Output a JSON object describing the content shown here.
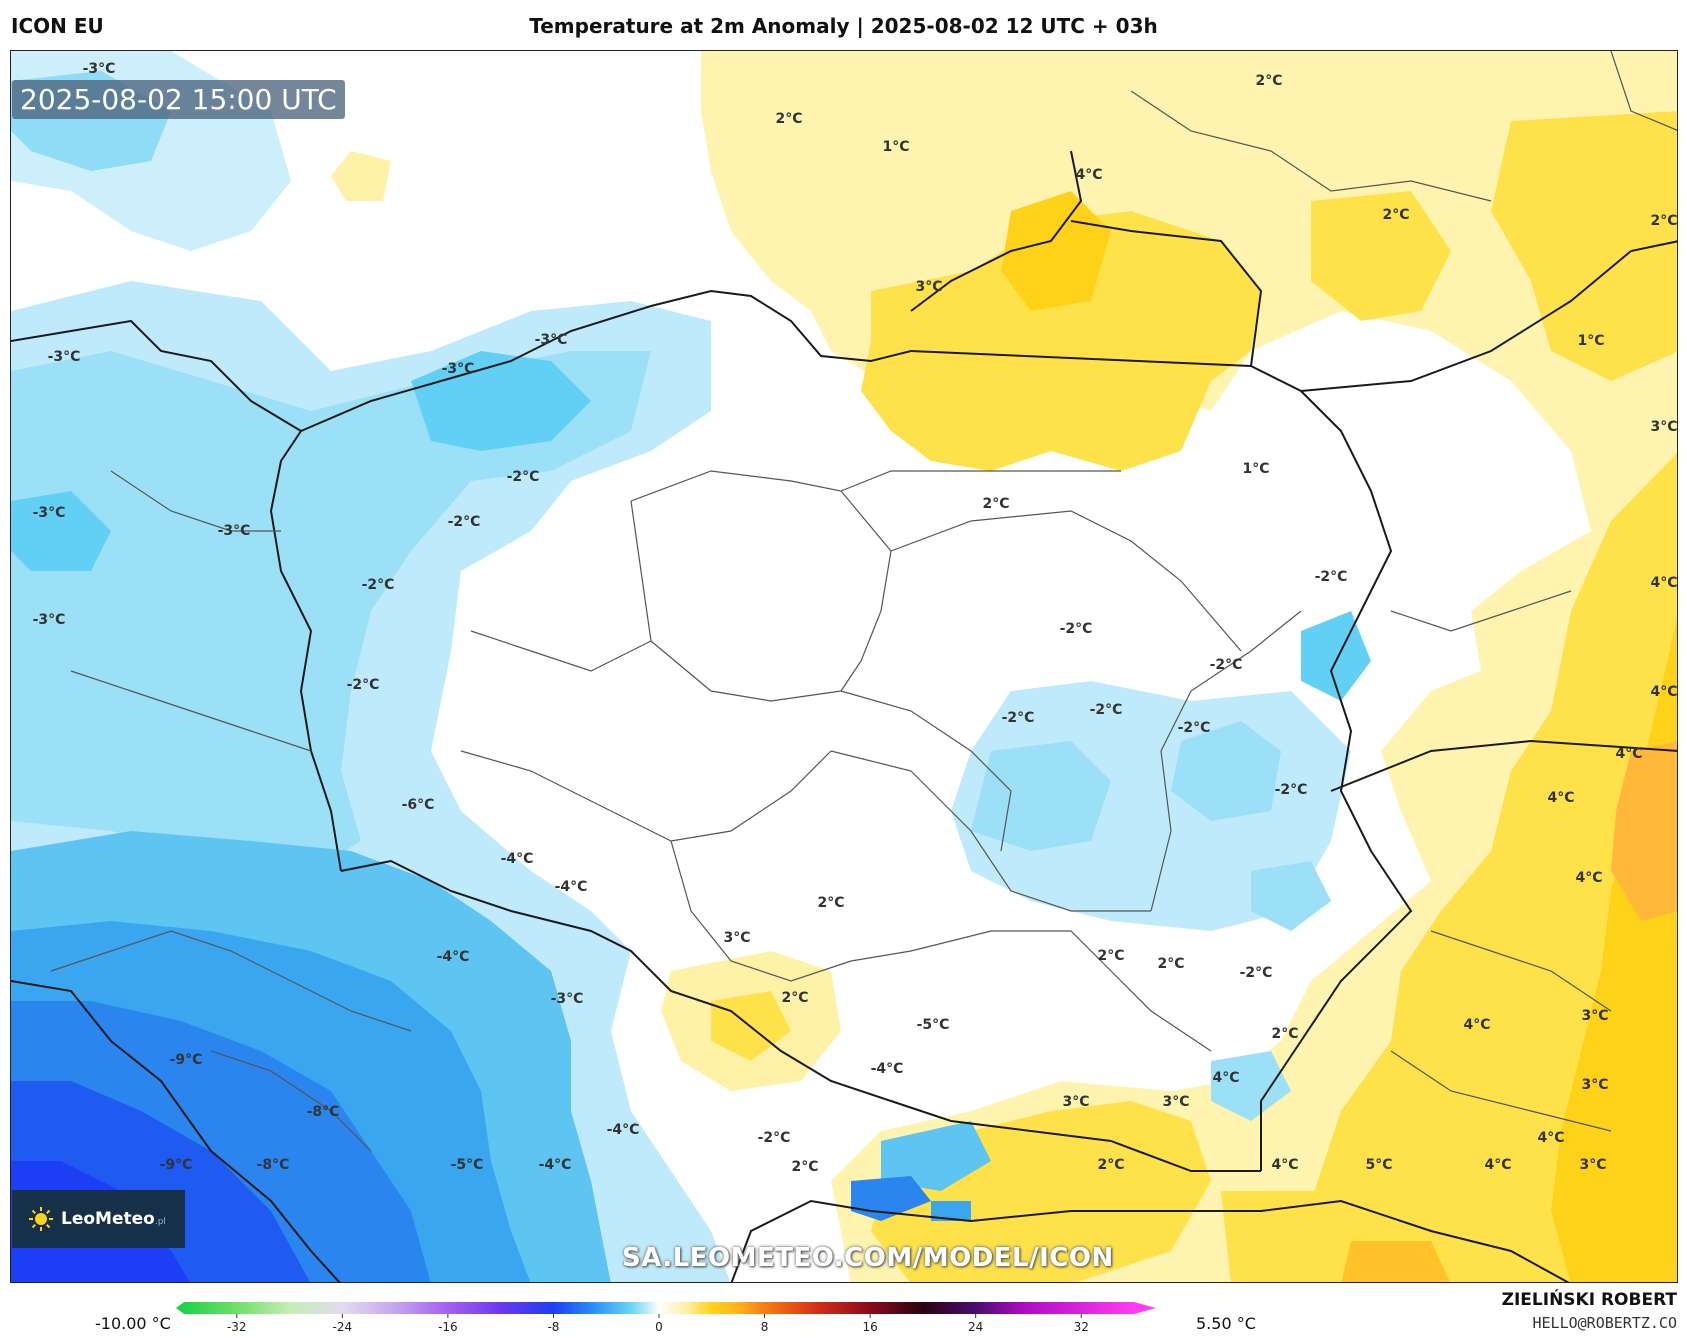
{
  "header": {
    "model": "ICON EU",
    "title": "Temperature at 2m Anomaly | 2025-08-02 12 UTC + 03h"
  },
  "map": {
    "valid_time": "2025-08-02 15:00 UTC",
    "watermark": "SA.LEOMETEO.COM/MODEL/ICON",
    "logo_text": "LeoMeteo",
    "logo_sub": ".pl",
    "labels": [
      {
        "text": "-3°C"
      },
      {
        "text": "2°C"
      },
      {
        "text": "1°C"
      },
      {
        "text": "4°C"
      },
      {
        "text": "2°C"
      },
      {
        "text": "2°C"
      },
      {
        "text": "2°C"
      },
      {
        "text": "3°C"
      },
      {
        "text": "-3°C"
      },
      {
        "text": "-3°C"
      },
      {
        "text": "-3°C"
      },
      {
        "text": "1°C"
      },
      {
        "text": "3°C"
      },
      {
        "text": "-2°C"
      },
      {
        "text": "1°C"
      },
      {
        "text": "-2°C"
      },
      {
        "text": "2°C"
      },
      {
        "text": "-3°C"
      },
      {
        "text": "-3°C"
      },
      {
        "text": "-2°C"
      },
      {
        "text": "-2°C"
      },
      {
        "text": "4°C"
      },
      {
        "text": "-3°C"
      },
      {
        "text": "-2°C"
      },
      {
        "text": "-2°C"
      },
      {
        "text": "-2°C"
      },
      {
        "text": "-2°C"
      },
      {
        "text": "-2°C"
      },
      {
        "text": "4°C"
      },
      {
        "text": "-2°C"
      },
      {
        "text": "4°C"
      },
      {
        "text": "-2°C"
      },
      {
        "text": "4°C"
      },
      {
        "text": "-6°C"
      },
      {
        "text": "-4°C"
      },
      {
        "text": "-4°C"
      },
      {
        "text": "4°C"
      },
      {
        "text": "2°C"
      },
      {
        "text": "3°C"
      },
      {
        "text": "-4°C"
      },
      {
        "text": "2°C"
      },
      {
        "text": "2°C"
      },
      {
        "text": "-2°C"
      },
      {
        "text": "-3°C"
      },
      {
        "text": "2°C"
      },
      {
        "text": "-5°C"
      },
      {
        "text": "2°C"
      },
      {
        "text": "4°C"
      },
      {
        "text": "3°C"
      },
      {
        "text": "-9°C"
      },
      {
        "text": "-4°C"
      },
      {
        "text": "4°C"
      },
      {
        "text": "3°C"
      },
      {
        "text": "3°C"
      },
      {
        "text": "3°C"
      },
      {
        "text": "-8°C"
      },
      {
        "text": "-4°C"
      },
      {
        "text": "-2°C"
      },
      {
        "text": "4°C"
      },
      {
        "text": "-9°C"
      },
      {
        "text": "-8°C"
      },
      {
        "text": "-5°C"
      },
      {
        "text": "-4°C"
      },
      {
        "text": "2°C"
      },
      {
        "text": "2°C"
      },
      {
        "text": "4°C"
      },
      {
        "text": "5°C"
      },
      {
        "text": "4°C"
      },
      {
        "text": "3°C"
      }
    ]
  },
  "colorbar": {
    "min_label": "-10.00 °C",
    "max_label": "5.50 °C",
    "ticks": [
      "-32",
      "-24",
      "-16",
      "-8",
      "0",
      "8",
      "16",
      "24",
      "32"
    ],
    "tick_values": [
      -32,
      -24,
      -16,
      -8,
      0,
      8,
      16,
      24,
      32
    ],
    "range": [
      -36,
      36
    ],
    "stops": [
      {
        "v": -36,
        "c": "#1fd24a"
      },
      {
        "v": -32,
        "c": "#6fe06a"
      },
      {
        "v": -28,
        "c": "#c4edb5"
      },
      {
        "v": -24,
        "c": "#e2dcef"
      },
      {
        "v": -20,
        "c": "#c5a5ef"
      },
      {
        "v": -16,
        "c": "#a55ff0"
      },
      {
        "v": -12,
        "c": "#6a38f0"
      },
      {
        "v": -8,
        "c": "#1c3ef5"
      },
      {
        "v": -5,
        "c": "#2a8df8"
      },
      {
        "v": -2,
        "c": "#6fd6f6"
      },
      {
        "v": 0,
        "c": "#ffffff"
      },
      {
        "v": 2,
        "c": "#fff1a6"
      },
      {
        "v": 4,
        "c": "#ffd21a"
      },
      {
        "v": 6,
        "c": "#ffb21a"
      },
      {
        "v": 8,
        "c": "#f67e14"
      },
      {
        "v": 12,
        "c": "#d42e14"
      },
      {
        "v": 16,
        "c": "#8a0a1a"
      },
      {
        "v": 20,
        "c": "#2a0410"
      },
      {
        "v": 24,
        "c": "#4b0c6e"
      },
      {
        "v": 28,
        "c": "#b30cc9"
      },
      {
        "v": 36,
        "c": "#ff3cf0"
      }
    ]
  },
  "footer": {
    "author": "ZIELIŃSKI ROBERT",
    "email": "HELLO@ROBERTZ.CO"
  }
}
